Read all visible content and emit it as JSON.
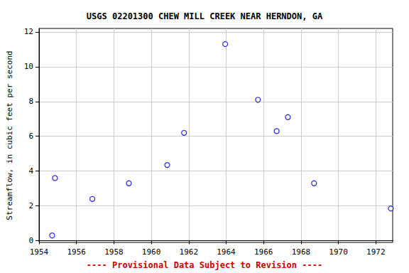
{
  "chart_data": {
    "type": "scatter",
    "title": "USGS 02201300 CHEW MILL CREEK NEAR HERNDON, GA",
    "y_label": "Streamflow, in cubic feet per second",
    "annotations": [
      "---- Provisional Data Subject to Revision ----"
    ],
    "x": [
      1954.7,
      1954.85,
      1956.85,
      1958.8,
      1960.85,
      1961.75,
      1963.95,
      1965.7,
      1966.7,
      1967.3,
      1968.7,
      1972.8
    ],
    "values": [
      0.3,
      3.6,
      2.4,
      3.3,
      4.35,
      6.2,
      11.3,
      8.1,
      6.3,
      7.1,
      3.3,
      1.85
    ],
    "color": "#0000cc",
    "marker": "circle",
    "xlim": [
      1954,
      1972.9
    ],
    "xticks": [
      1954,
      1956,
      1958,
      1960,
      1962,
      1964,
      1966,
      1968,
      1970,
      1972
    ],
    "ylim": [
      -0.1,
      12.2
    ],
    "yticks": [
      0,
      2,
      4,
      6,
      8,
      10,
      12
    ],
    "grid": true
  }
}
